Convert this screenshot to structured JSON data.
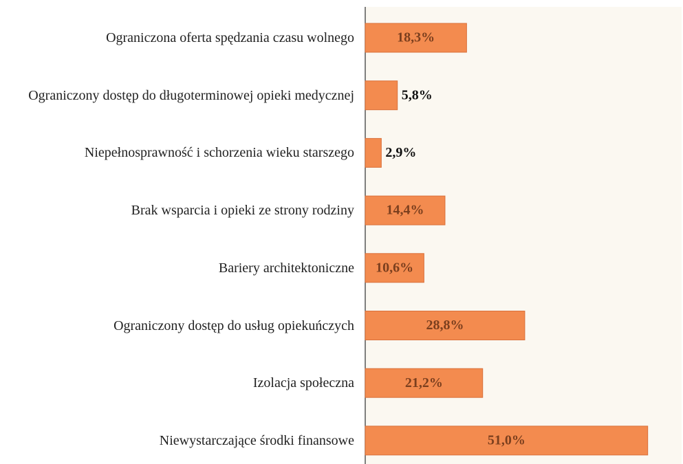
{
  "chart_data": {
    "type": "barh",
    "categories": [
      "Ograniczona oferta spędzania czasu wolnego",
      "Ograniczony dostęp do długoterminowej opieki medycznej",
      "Niepełnosprawność i schorzenia wieku starszego",
      "Brak wsparcia i opieki ze strony rodziny",
      "Bariery architektoniczne",
      "Ograniczony dostęp do usług opiekuńczych",
      "Izolacja społeczna",
      "Niewystarczające środki finansowe"
    ],
    "values": [
      18.3,
      5.8,
      2.9,
      14.4,
      10.6,
      28.8,
      21.2,
      51.0
    ],
    "value_labels": [
      "18,3%",
      "5,8%",
      "2,9%",
      "14,4%",
      "10,6%",
      "28,8%",
      "21,2%",
      "51,0%"
    ],
    "color": "#f38b4f",
    "xlim": [
      0,
      57
    ]
  }
}
